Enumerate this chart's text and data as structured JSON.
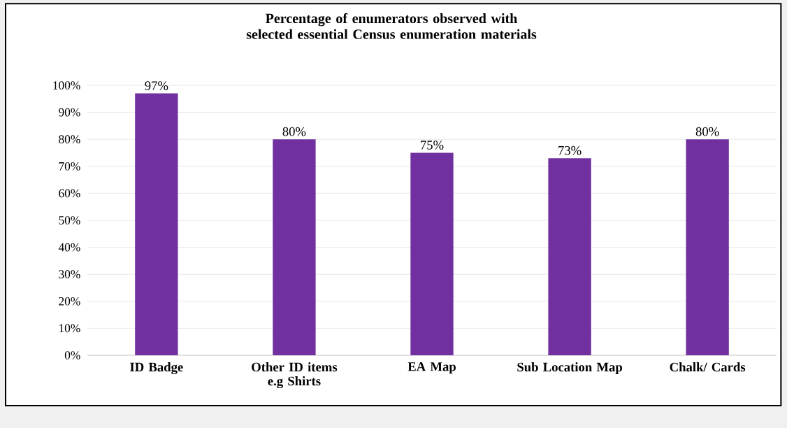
{
  "chart_data": {
    "type": "bar",
    "title": "Percentage of enumerators observed with selected essential Census enumeration materials",
    "categories": [
      "ID Badge",
      "Other ID items e.g Shirts",
      "EA Map",
      "Sub Location Map",
      "Chalk/ Cards"
    ],
    "values": [
      97,
      80,
      75,
      73,
      80
    ],
    "value_labels": [
      "97%",
      "80%",
      "75%",
      "73%",
      "80%"
    ],
    "color": "#7030a0",
    "ylim": [
      0,
      100
    ],
    "yticks": [
      {
        "value": 0,
        "label": "0%"
      },
      {
        "value": 10,
        "label": "10%"
      },
      {
        "value": 20,
        "label": "20%"
      },
      {
        "value": 30,
        "label": "30%"
      },
      {
        "value": 40,
        "label": "40%"
      },
      {
        "value": 50,
        "label": "50%"
      },
      {
        "value": 60,
        "label": "60%"
      },
      {
        "value": 70,
        "label": "70%"
      },
      {
        "value": 80,
        "label": "80%"
      },
      {
        "value": 90,
        "label": "90%"
      },
      {
        "value": 100,
        "label": "100%"
      }
    ],
    "grid": "y"
  }
}
